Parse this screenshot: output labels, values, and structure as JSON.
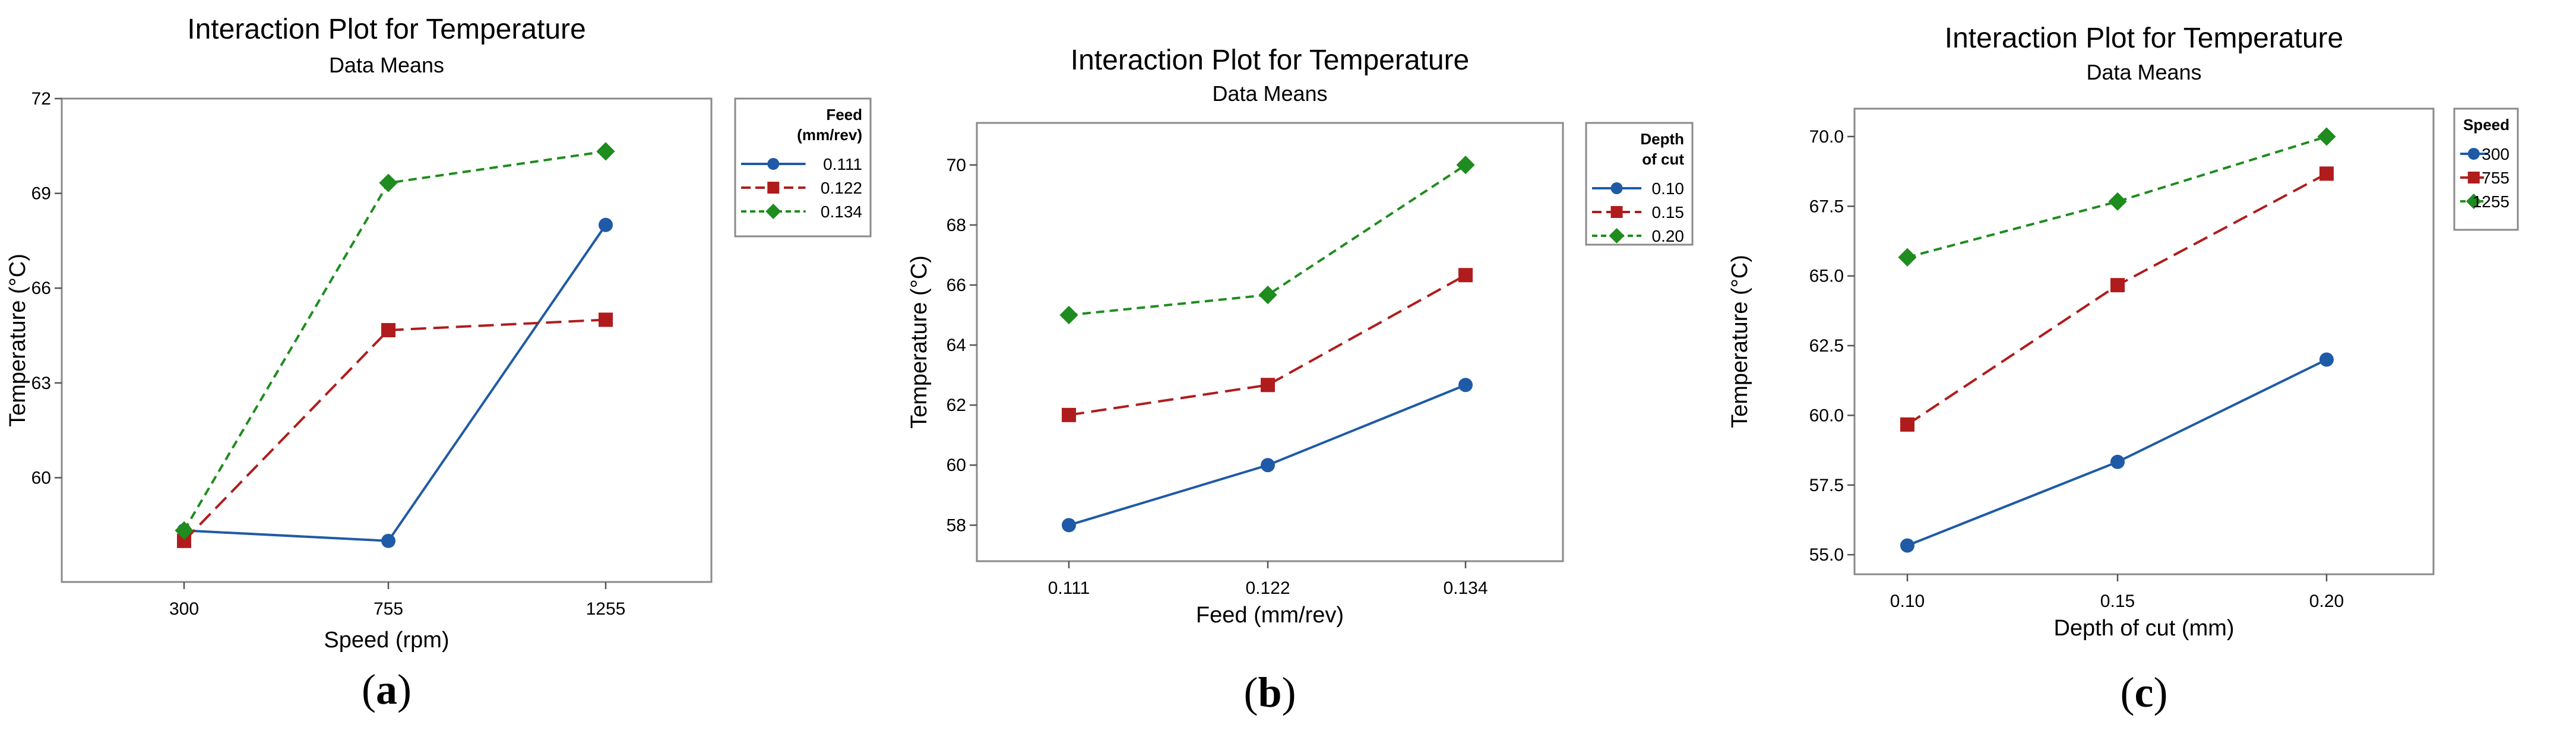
{
  "chart_data": [
    {
      "type": "line",
      "panel_label": "a",
      "title": "Interaction Plot for Temperature",
      "subtitle": "Data Means",
      "xlabel": "Speed (rpm)",
      "ylabel": "Temperature (°C)",
      "categories": [
        "300",
        "755",
        "1255"
      ],
      "yticks": [
        60,
        63,
        66,
        69,
        72
      ],
      "ytick_labels": [
        "60",
        "63",
        "66",
        "69",
        "72"
      ],
      "ylim": [
        56.7,
        72
      ],
      "legend_title": [
        "Feed",
        "(mm/rev)"
      ],
      "legend_position": "right",
      "series": [
        {
          "name": "0.111",
          "values": [
            58.33,
            58.0,
            68.0
          ],
          "color": "#1f5aa6",
          "dash": "solid",
          "marker": "circle"
        },
        {
          "name": "0.122",
          "values": [
            58.0,
            64.67,
            65.0
          ],
          "color": "#b01c1c",
          "dash": "long-dash",
          "marker": "square"
        },
        {
          "name": "0.134",
          "values": [
            58.33,
            69.33,
            70.33
          ],
          "color": "#1e8c1e",
          "dash": "short-dash",
          "marker": "diamond"
        }
      ]
    },
    {
      "type": "line",
      "panel_label": "b",
      "title": "Interaction Plot for Temperature",
      "subtitle": "Data Means",
      "xlabel": "Feed (mm/rev)",
      "ylabel": "Temperature (°C)",
      "categories": [
        "0.111",
        "0.122",
        "0.134"
      ],
      "yticks": [
        58,
        60,
        62,
        64,
        66,
        68,
        70
      ],
      "ytick_labels": [
        "58",
        "60",
        "62",
        "64",
        "66",
        "68",
        "70"
      ],
      "ylim": [
        56.8,
        71.4
      ],
      "legend_title": [
        "Depth",
        "of cut"
      ],
      "legend_position": "right",
      "series": [
        {
          "name": "0.10",
          "values": [
            58.0,
            60.0,
            62.67
          ],
          "color": "#1f5aa6",
          "dash": "solid",
          "marker": "circle"
        },
        {
          "name": "0.15",
          "values": [
            61.67,
            62.67,
            66.33
          ],
          "color": "#b01c1c",
          "dash": "long-dash",
          "marker": "square"
        },
        {
          "name": "0.20",
          "values": [
            65.0,
            65.67,
            70.0
          ],
          "color": "#1e8c1e",
          "dash": "short-dash",
          "marker": "diamond"
        }
      ]
    },
    {
      "type": "line",
      "panel_label": "c",
      "title": "Interaction Plot for Temperature",
      "subtitle": "Data Means",
      "xlabel": "Depth of cut (mm)",
      "ylabel": "Temperature (°C)",
      "categories": [
        "0.10",
        "0.15",
        "0.20"
      ],
      "yticks": [
        55,
        57.5,
        60,
        62.5,
        65,
        67.5,
        70
      ],
      "ytick_labels": [
        "55.0",
        "57.5",
        "60.0",
        "62.5",
        "65.0",
        "67.5",
        "70.0"
      ],
      "ylim": [
        54.3,
        71.0
      ],
      "legend_title": [
        "Speed"
      ],
      "legend_position": "right",
      "series": [
        {
          "name": "300",
          "values": [
            55.33,
            58.33,
            62.0
          ],
          "color": "#1f5aa6",
          "dash": "solid",
          "marker": "circle"
        },
        {
          "name": "755",
          "values": [
            59.67,
            64.67,
            68.67
          ],
          "color": "#b01c1c",
          "dash": "long-dash",
          "marker": "square"
        },
        {
          "name": "1255",
          "values": [
            65.67,
            67.67,
            70.0
          ],
          "color": "#1e8c1e",
          "dash": "short-dash",
          "marker": "diamond"
        }
      ]
    }
  ]
}
